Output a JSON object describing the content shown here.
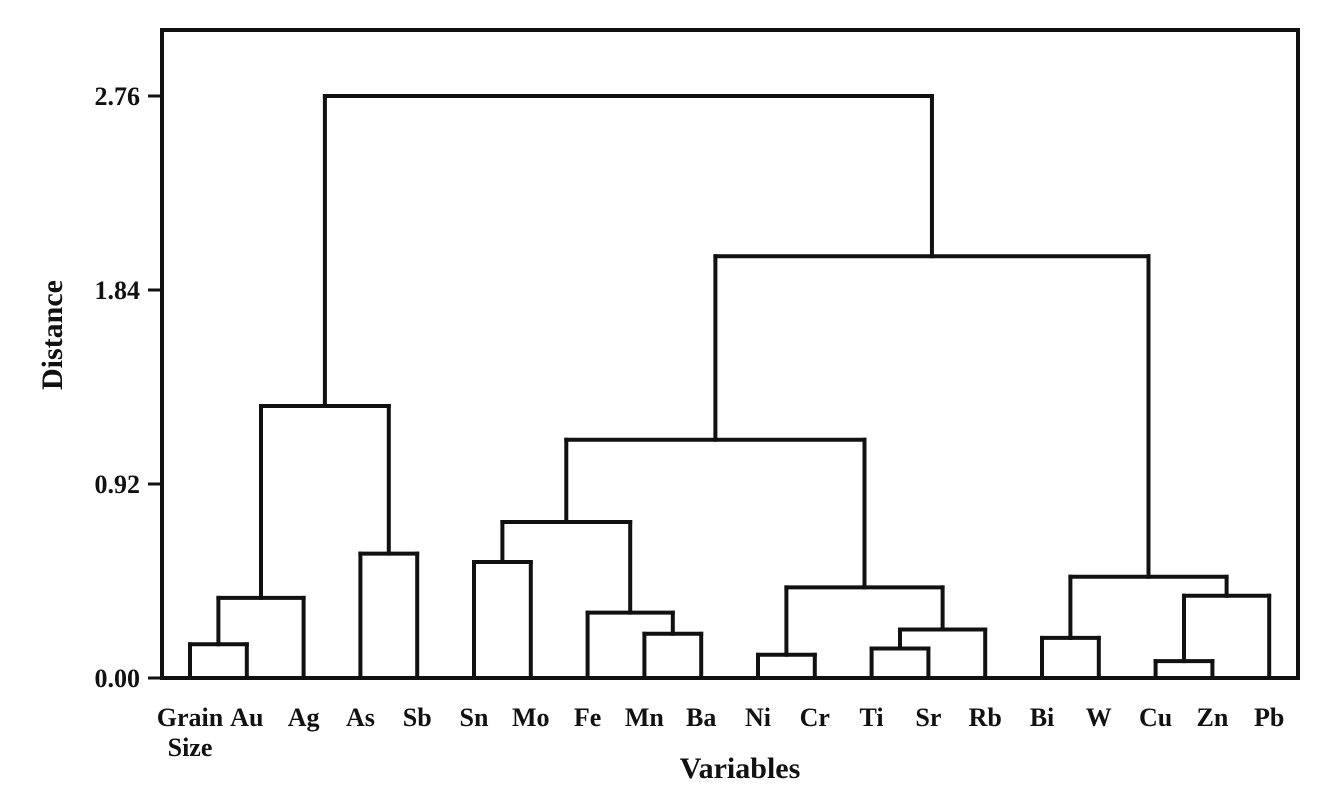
{
  "chart_data": {
    "type": "dendrogram",
    "title": "",
    "xlabel": "Variables",
    "ylabel": "Distance",
    "ylim": [
      0,
      3.07
    ],
    "y_ticks": [
      "0.00",
      "0.92",
      "1.84",
      "2.76"
    ],
    "y_tick_values": [
      0,
      0.92,
      1.84,
      2.76
    ],
    "leaves": [
      "Grain Size",
      "Au",
      "Ag",
      "As",
      "Sb",
      "Sn",
      "Mo",
      "Fe",
      "Mn",
      "Ba",
      "Ni",
      "Cr",
      "Ti",
      "Sr",
      "Rb",
      "Bi",
      "W",
      "Cu",
      "Zn",
      "Pb"
    ],
    "merges": [
      {
        "id": "c1",
        "left": "Grain Size",
        "right": "Au",
        "height": 0.16
      },
      {
        "id": "c2",
        "left": "c1",
        "right": "Ag",
        "height": 0.38
      },
      {
        "id": "c3",
        "left": "As",
        "right": "Sb",
        "height": 0.59
      },
      {
        "id": "c4",
        "left": "c2",
        "right": "c3",
        "height": 1.29
      },
      {
        "id": "c5",
        "left": "Sn",
        "right": "Mo",
        "height": 0.55
      },
      {
        "id": "c6",
        "left": "Mn",
        "right": "Ba",
        "height": 0.21
      },
      {
        "id": "c7",
        "left": "Fe",
        "right": "c6",
        "height": 0.31
      },
      {
        "id": "c8",
        "left": "c5",
        "right": "c7",
        "height": 0.74
      },
      {
        "id": "c9",
        "left": "Ni",
        "right": "Cr",
        "height": 0.11
      },
      {
        "id": "c10",
        "left": "Ti",
        "right": "Sr",
        "height": 0.14
      },
      {
        "id": "c11",
        "left": "c10",
        "right": "Rb",
        "height": 0.23
      },
      {
        "id": "c12",
        "left": "c9",
        "right": "c11",
        "height": 0.43
      },
      {
        "id": "c13",
        "left": "c8",
        "right": "c12",
        "height": 1.13
      },
      {
        "id": "c14",
        "left": "Bi",
        "right": "W",
        "height": 0.19
      },
      {
        "id": "c15",
        "left": "Cu",
        "right": "Zn",
        "height": 0.08
      },
      {
        "id": "c16",
        "left": "c15",
        "right": "Pb",
        "height": 0.39
      },
      {
        "id": "c17",
        "left": "c14",
        "right": "c16",
        "height": 0.48
      },
      {
        "id": "c18",
        "left": "c13",
        "right": "c17",
        "height": 2.0
      },
      {
        "id": "c19",
        "left": "c4",
        "right": "c18",
        "height": 2.76
      }
    ],
    "grid": false,
    "legend": "none"
  }
}
